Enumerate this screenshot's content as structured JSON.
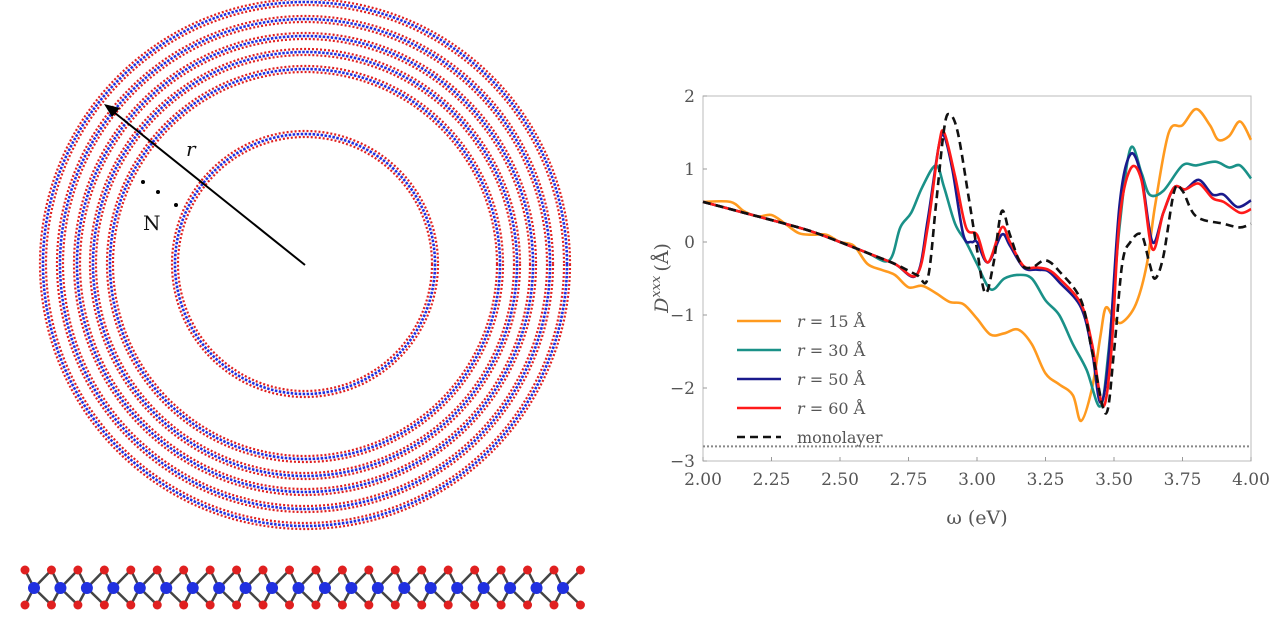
{
  "illustration": {
    "radius_label": "r",
    "layers_label": "N",
    "colors": {
      "outer_atom": "#e02020",
      "inner_atom": "#2030e0",
      "bond": "#444444"
    }
  },
  "chart_data": {
    "type": "line",
    "xlabel": "ω (eV)",
    "ylabel": "D^xxx (Å)",
    "ylabel_base": "D",
    "ylabel_sup": "xxx",
    "ylabel_unit": "(Å)",
    "xlim": [
      2.0,
      4.0
    ],
    "ylim": [
      -3,
      2
    ],
    "xticks": [
      "2.00",
      "2.25",
      "2.50",
      "2.75",
      "3.00",
      "3.25",
      "3.50",
      "3.75",
      "4.00"
    ],
    "yticks": [
      "2",
      "1",
      "0",
      "−1",
      "−2",
      "−3"
    ],
    "grid": false,
    "legend_placement": "lower-left",
    "reference_line": {
      "y": -2.8,
      "style": "dotted",
      "color": "#888888"
    },
    "series": [
      {
        "name": "r = 15 Å",
        "name_var": "r",
        "name_rest": " = 15 Å",
        "color": "#ff9a1f",
        "style": "solid",
        "points": [
          [
            2.0,
            0.55
          ],
          [
            2.1,
            0.55
          ],
          [
            2.15,
            0.42
          ],
          [
            2.2,
            0.35
          ],
          [
            2.25,
            0.37
          ],
          [
            2.3,
            0.25
          ],
          [
            2.35,
            0.12
          ],
          [
            2.4,
            0.1
          ],
          [
            2.45,
            0.1
          ],
          [
            2.5,
            0.0
          ],
          [
            2.55,
            -0.05
          ],
          [
            2.6,
            -0.3
          ],
          [
            2.65,
            -0.38
          ],
          [
            2.7,
            -0.45
          ],
          [
            2.75,
            -0.62
          ],
          [
            2.8,
            -0.6
          ],
          [
            2.85,
            -0.7
          ],
          [
            2.9,
            -0.82
          ],
          [
            2.95,
            -0.85
          ],
          [
            3.0,
            -1.05
          ],
          [
            3.05,
            -1.27
          ],
          [
            3.1,
            -1.25
          ],
          [
            3.15,
            -1.2
          ],
          [
            3.2,
            -1.4
          ],
          [
            3.25,
            -1.8
          ],
          [
            3.3,
            -1.95
          ],
          [
            3.35,
            -2.1
          ],
          [
            3.38,
            -2.45
          ],
          [
            3.42,
            -2.0
          ],
          [
            3.45,
            -1.3
          ],
          [
            3.47,
            -0.9
          ],
          [
            3.5,
            -1.05
          ],
          [
            3.53,
            -1.1
          ],
          [
            3.58,
            -0.85
          ],
          [
            3.62,
            -0.3
          ],
          [
            3.65,
            0.5
          ],
          [
            3.7,
            1.5
          ],
          [
            3.75,
            1.6
          ],
          [
            3.8,
            1.82
          ],
          [
            3.85,
            1.6
          ],
          [
            3.88,
            1.4
          ],
          [
            3.92,
            1.45
          ],
          [
            3.96,
            1.65
          ],
          [
            4.0,
            1.4
          ]
        ]
      },
      {
        "name": "r = 30 Å",
        "name_var": "r",
        "name_rest": " = 30 Å",
        "color": "#1a9188",
        "style": "solid",
        "points": [
          [
            2.0,
            0.55
          ],
          [
            2.1,
            0.45
          ],
          [
            2.2,
            0.35
          ],
          [
            2.3,
            0.25
          ],
          [
            2.4,
            0.14
          ],
          [
            2.5,
            0.0
          ],
          [
            2.6,
            -0.15
          ],
          [
            2.68,
            -0.25
          ],
          [
            2.72,
            0.2
          ],
          [
            2.76,
            0.4
          ],
          [
            2.8,
            0.75
          ],
          [
            2.85,
            1.05
          ],
          [
            2.88,
            0.75
          ],
          [
            2.92,
            0.25
          ],
          [
            2.96,
            0.0
          ],
          [
            3.0,
            -0.3
          ],
          [
            3.05,
            -0.65
          ],
          [
            3.1,
            -0.5
          ],
          [
            3.15,
            -0.45
          ],
          [
            3.2,
            -0.5
          ],
          [
            3.25,
            -0.8
          ],
          [
            3.3,
            -1.0
          ],
          [
            3.35,
            -1.4
          ],
          [
            3.4,
            -1.75
          ],
          [
            3.45,
            -2.25
          ],
          [
            3.48,
            -1.5
          ],
          [
            3.52,
            0.2
          ],
          [
            3.56,
            1.28
          ],
          [
            3.6,
            0.95
          ],
          [
            3.63,
            0.65
          ],
          [
            3.68,
            0.7
          ],
          [
            3.75,
            1.05
          ],
          [
            3.8,
            1.05
          ],
          [
            3.87,
            1.1
          ],
          [
            3.92,
            1.02
          ],
          [
            3.96,
            1.05
          ],
          [
            4.0,
            0.87
          ]
        ]
      },
      {
        "name": "r = 50 Å",
        "name_var": "r",
        "name_rest": " = 50 Å",
        "color": "#1a1a8c",
        "style": "solid",
        "points": [
          [
            2.0,
            0.55
          ],
          [
            2.1,
            0.45
          ],
          [
            2.2,
            0.35
          ],
          [
            2.3,
            0.25
          ],
          [
            2.4,
            0.14
          ],
          [
            2.5,
            0.0
          ],
          [
            2.6,
            -0.15
          ],
          [
            2.7,
            -0.3
          ],
          [
            2.78,
            -0.45
          ],
          [
            2.82,
            0.3
          ],
          [
            2.86,
            1.3
          ],
          [
            2.88,
            1.45
          ],
          [
            2.91,
            1.0
          ],
          [
            2.95,
            0.1
          ],
          [
            2.98,
            0.0
          ],
          [
            3.0,
            0.0
          ],
          [
            3.04,
            -0.28
          ],
          [
            3.09,
            0.1
          ],
          [
            3.12,
            -0.05
          ],
          [
            3.17,
            -0.35
          ],
          [
            3.22,
            -0.38
          ],
          [
            3.26,
            -0.4
          ],
          [
            3.3,
            -0.55
          ],
          [
            3.38,
            -0.9
          ],
          [
            3.42,
            -1.5
          ],
          [
            3.45,
            -2.2
          ],
          [
            3.48,
            -1.6
          ],
          [
            3.52,
            0.5
          ],
          [
            3.56,
            1.2
          ],
          [
            3.6,
            0.9
          ],
          [
            3.64,
            0.0
          ],
          [
            3.68,
            0.4
          ],
          [
            3.72,
            0.75
          ],
          [
            3.76,
            0.72
          ],
          [
            3.81,
            0.85
          ],
          [
            3.86,
            0.65
          ],
          [
            3.9,
            0.65
          ],
          [
            3.95,
            0.48
          ],
          [
            4.0,
            0.57
          ]
        ]
      },
      {
        "name": "r = 60 Å",
        "name_var": "r",
        "name_rest": " = 60 Å",
        "color": "#ff1a1a",
        "style": "solid",
        "points": [
          [
            2.0,
            0.55
          ],
          [
            2.1,
            0.45
          ],
          [
            2.2,
            0.35
          ],
          [
            2.3,
            0.25
          ],
          [
            2.4,
            0.14
          ],
          [
            2.5,
            0.0
          ],
          [
            2.6,
            -0.15
          ],
          [
            2.7,
            -0.3
          ],
          [
            2.78,
            -0.45
          ],
          [
            2.82,
            0.2
          ],
          [
            2.86,
            1.3
          ],
          [
            2.88,
            1.5
          ],
          [
            2.92,
            0.9
          ],
          [
            2.96,
            0.2
          ],
          [
            3.0,
            0.1
          ],
          [
            3.04,
            -0.28
          ],
          [
            3.09,
            0.2
          ],
          [
            3.12,
            0.0
          ],
          [
            3.17,
            -0.33
          ],
          [
            3.22,
            -0.35
          ],
          [
            3.26,
            -0.38
          ],
          [
            3.3,
            -0.5
          ],
          [
            3.38,
            -0.85
          ],
          [
            3.42,
            -1.4
          ],
          [
            3.46,
            -2.25
          ],
          [
            3.49,
            -1.5
          ],
          [
            3.52,
            0.3
          ],
          [
            3.56,
            1.0
          ],
          [
            3.6,
            0.85
          ],
          [
            3.64,
            -0.1
          ],
          [
            3.68,
            0.4
          ],
          [
            3.72,
            0.75
          ],
          [
            3.76,
            0.72
          ],
          [
            3.81,
            0.8
          ],
          [
            3.86,
            0.6
          ],
          [
            3.9,
            0.55
          ],
          [
            3.96,
            0.4
          ],
          [
            4.0,
            0.45
          ]
        ]
      },
      {
        "name": "monolayer",
        "color": "#111111",
        "style": "dashed",
        "points": [
          [
            2.0,
            0.55
          ],
          [
            2.1,
            0.45
          ],
          [
            2.2,
            0.35
          ],
          [
            2.3,
            0.25
          ],
          [
            2.4,
            0.14
          ],
          [
            2.5,
            0.0
          ],
          [
            2.6,
            -0.15
          ],
          [
            2.7,
            -0.3
          ],
          [
            2.78,
            -0.45
          ],
          [
            2.82,
            -0.5
          ],
          [
            2.85,
            0.5
          ],
          [
            2.88,
            1.55
          ],
          [
            2.9,
            1.75
          ],
          [
            2.93,
            1.5
          ],
          [
            2.97,
            0.6
          ],
          [
            3.0,
            -0.1
          ],
          [
            3.03,
            -0.7
          ],
          [
            3.06,
            -0.3
          ],
          [
            3.09,
            0.42
          ],
          [
            3.12,
            0.1
          ],
          [
            3.16,
            -0.3
          ],
          [
            3.2,
            -0.35
          ],
          [
            3.25,
            -0.25
          ],
          [
            3.3,
            -0.4
          ],
          [
            3.38,
            -0.8
          ],
          [
            3.42,
            -1.5
          ],
          [
            3.47,
            -2.35
          ],
          [
            3.5,
            -1.5
          ],
          [
            3.53,
            -0.3
          ],
          [
            3.56,
            0.0
          ],
          [
            3.6,
            0.1
          ],
          [
            3.63,
            -0.3
          ],
          [
            3.65,
            -0.5
          ],
          [
            3.68,
            -0.2
          ],
          [
            3.72,
            0.7
          ],
          [
            3.75,
            0.7
          ],
          [
            3.8,
            0.35
          ],
          [
            3.9,
            0.25
          ],
          [
            3.96,
            0.2
          ],
          [
            4.0,
            0.25
          ]
        ]
      }
    ]
  }
}
